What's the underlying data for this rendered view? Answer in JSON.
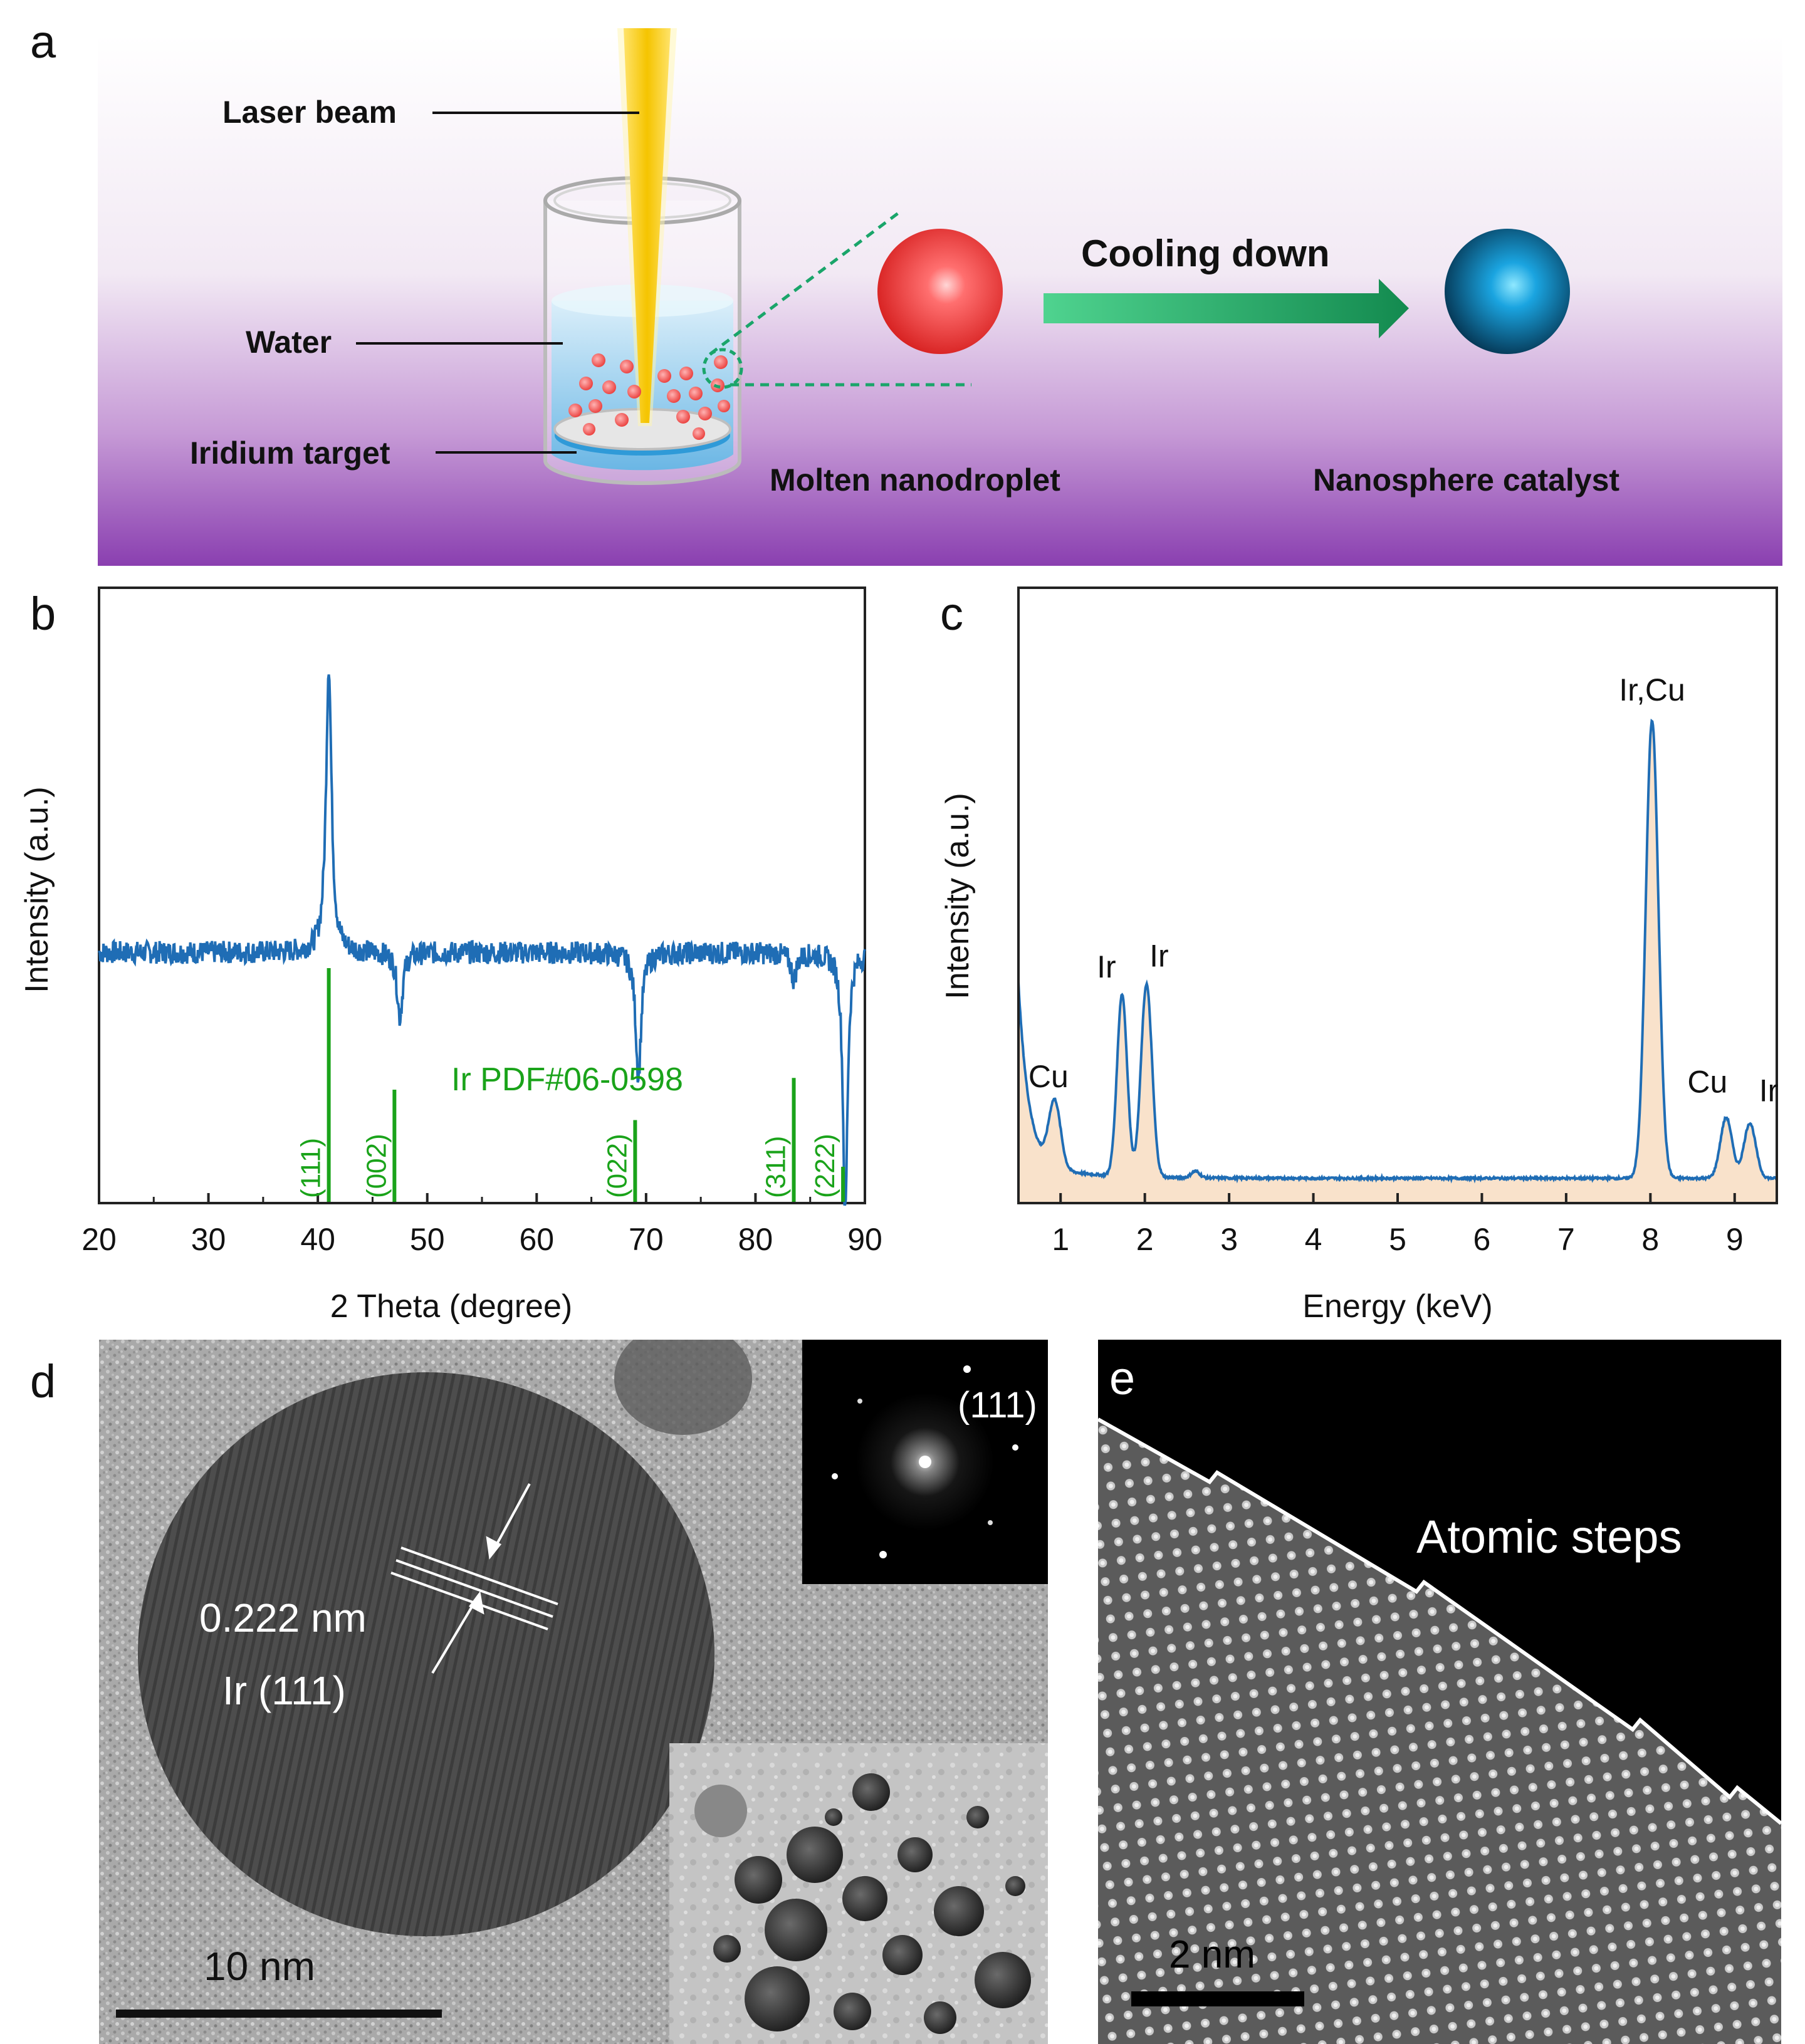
{
  "panel_letters": {
    "a": "a",
    "b": "b",
    "c": "c",
    "d": "d",
    "e": "e"
  },
  "panel_a": {
    "laser_beam": "Laser beam",
    "water": "Water",
    "iridium_target": "Iridium target",
    "cooling_down": "Cooling down",
    "molten_nanodroplet": "Molten nanodroplet",
    "nanosphere_catalyst": "Nanosphere catalyst",
    "colors": {
      "beam": "#f5c400",
      "droplet": "#e8322f",
      "sphere": "#0a7fc2",
      "arrow": "#1eae66",
      "bg_top": "#ffffff",
      "bg_bottom": "#8a3fb0"
    }
  },
  "panel_d": {
    "spacing_label": "0.222 nm",
    "plane_label": "Ir (111)",
    "fft_label": "(111)",
    "scale_bar": "10 nm"
  },
  "panel_e": {
    "label": "Atomic steps",
    "scale_bar": "2 nm"
  },
  "chart_data": [
    {
      "type": "line",
      "panel": "b",
      "xlabel": "2 Theta (degree)",
      "ylabel": "Intensity (a.u.)",
      "xlim": [
        20,
        90
      ],
      "xticks": [
        20,
        30,
        40,
        50,
        60,
        70,
        80,
        90
      ],
      "series": [
        {
          "color": "#1f6db5",
          "baseline": 0.56,
          "peaks": [
            {
              "x": 41.0,
              "height": 1.0,
              "width": 0.3
            },
            {
              "x": 47.5,
              "height": 0.46,
              "width": 0.3
            },
            {
              "x": 69.3,
              "height": 0.37,
              "width": 0.3
            },
            {
              "x": 83.5,
              "height": 0.52,
              "width": 0.3
            },
            {
              "x": 88.2,
              "height": 0.16,
              "width": 0.25
            }
          ]
        }
      ],
      "reference": {
        "name": "Ir PDF#06-0598",
        "color": "#1aa31a",
        "lines": [
          {
            "x": 41.0,
            "rel": 1.0,
            "hkl": "(111)"
          },
          {
            "x": 47.0,
            "rel": 0.48,
            "hkl": "(002)"
          },
          {
            "x": 69.0,
            "rel": 0.35,
            "hkl": "(022)"
          },
          {
            "x": 83.5,
            "rel": 0.53,
            "hkl": "(311)"
          },
          {
            "x": 88.0,
            "rel": 0.15,
            "hkl": "(222)"
          }
        ]
      }
    },
    {
      "type": "area",
      "panel": "c",
      "xlabel": "Energy (keV)",
      "ylabel": "Intensity (a.u.)",
      "xlim": [
        0.5,
        9.5
      ],
      "xticks": [
        1,
        2,
        3,
        4,
        5,
        6,
        7,
        8,
        9
      ],
      "series": [
        {
          "color": "#1f6db5",
          "fill": "#f9e2cb",
          "baseline": 0.045,
          "peaks": [
            {
              "x": 0.93,
              "height": 0.12,
              "width": 0.07,
              "label": "Cu"
            },
            {
              "x": 1.73,
              "height": 0.33,
              "width": 0.06,
              "label": "Ir"
            },
            {
              "x": 2.02,
              "height": 0.35,
              "width": 0.065,
              "label": "Ir"
            },
            {
              "x": 2.6,
              "height": 0.012,
              "width": 0.05
            },
            {
              "x": 8.02,
              "height": 0.83,
              "width": 0.075,
              "label": "Ir,Cu"
            },
            {
              "x": 8.9,
              "height": 0.11,
              "width": 0.07,
              "label": "Cu"
            },
            {
              "x": 9.18,
              "height": 0.1,
              "width": 0.07,
              "label": "Ir"
            }
          ],
          "start_value": 0.37
        }
      ]
    }
  ]
}
